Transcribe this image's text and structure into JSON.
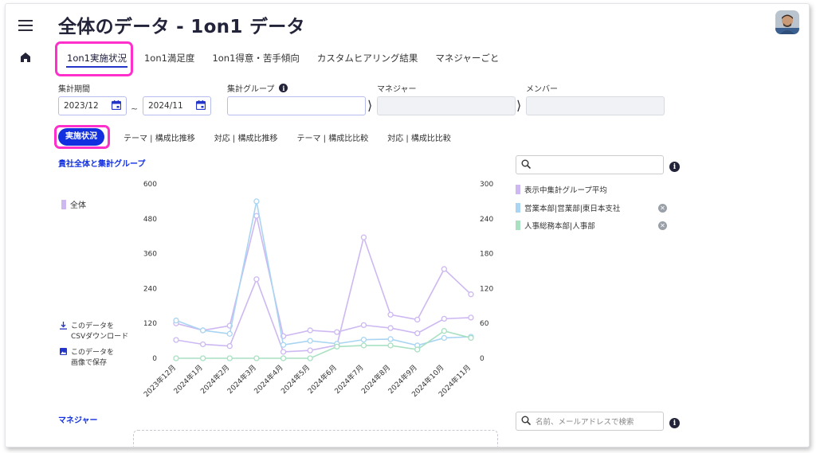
{
  "header": {
    "title": "全体のデータ - 1on1 データ"
  },
  "tabs": [
    {
      "label": "1on1実施状況",
      "active": true
    },
    {
      "label": "1on1満足度",
      "active": false
    },
    {
      "label": "1on1得意・苦手傾向",
      "active": false
    },
    {
      "label": "カスタムヒアリング結果",
      "active": false
    },
    {
      "label": "マネジャーごと",
      "active": false
    }
  ],
  "filters": {
    "period_label": "集計期間",
    "period_from": "2023/12",
    "period_to": "2024/11",
    "tilde": "~",
    "group_label": "集計グループ",
    "group_value": "",
    "manager_label": "マネジャー",
    "manager_value": "",
    "member_label": "メンバー",
    "member_value": ""
  },
  "subtabs": [
    {
      "label": "実施状況",
      "active": true
    },
    {
      "label": "テーマ | 構成比推移",
      "active": false
    },
    {
      "label": "対応 | 構成比推移",
      "active": false
    },
    {
      "label": "テーマ | 構成比比較",
      "active": false
    },
    {
      "label": "対応 | 構成比比較",
      "active": false
    }
  ],
  "chart_section": {
    "title": "貴社全体と集計グループ",
    "left_legend": "全体",
    "csv_line1": "このデータを",
    "csv_line2": "CSVダウンロード",
    "img_line1": "このデータを",
    "img_line2": "画像で保存"
  },
  "right_panel": {
    "search_placeholder": "",
    "legend": [
      {
        "label": "表示中集計グループ平均",
        "color": "#cdb8f2",
        "removable": false
      },
      {
        "label": "営業本部|営業部|東日本支社",
        "color": "#a9d5f2",
        "removable": true
      },
      {
        "label": "人事総務本部|人事部",
        "color": "#a9e0c2",
        "removable": true
      }
    ]
  },
  "manager_section": {
    "title": "マネジャー",
    "search_placeholder": "名前、メールアドレスで検索"
  },
  "colors": {
    "accent": "#1230e0",
    "highlight": "#ff2fcb",
    "overall": "#cdb8f2",
    "east": "#a9d5f2",
    "hr": "#a9e0c2"
  },
  "chart_data": {
    "type": "line",
    "categories": [
      "2023年12月",
      "2024年1月",
      "2024年2月",
      "2024年3月",
      "2024年4月",
      "2024年5月",
      "2024年6月",
      "2024年7月",
      "2024年8月",
      "2024年9月",
      "2024年10月",
      "2024年11月"
    ],
    "left_axis": {
      "ticks": [
        "0",
        "120",
        "240",
        "360",
        "480",
        "600"
      ],
      "ylim": [
        0,
        600
      ]
    },
    "right_axis": {
      "ticks": [
        "0",
        "60",
        "120",
        "180",
        "240",
        "300"
      ],
      "ylim": [
        0,
        300
      ]
    },
    "series": [
      {
        "name": "全体",
        "axis": "left",
        "color": "#cdb8f2",
        "values": [
          63,
          48,
          42,
          272,
          22,
          27,
          45,
          416,
          150,
          133,
          307,
          220
        ]
      },
      {
        "name": "表示中集計グループ平均",
        "axis": "right",
        "color": "#cdb8f2",
        "values": [
          60,
          48,
          56,
          245,
          38,
          48,
          45,
          57,
          52,
          43,
          68,
          70
        ]
      },
      {
        "name": "営業本部|営業部|東日本支社",
        "axis": "right",
        "color": "#a9d5f2",
        "values": [
          65,
          48,
          42,
          270,
          23,
          30,
          25,
          32,
          33,
          22,
          35,
          37
        ]
      },
      {
        "name": "人事総務本部|人事部",
        "axis": "right",
        "color": "#a9e0c2",
        "values": [
          0,
          0,
          0,
          0,
          0,
          0,
          20,
          22,
          22,
          15,
          47,
          35
        ]
      }
    ]
  }
}
